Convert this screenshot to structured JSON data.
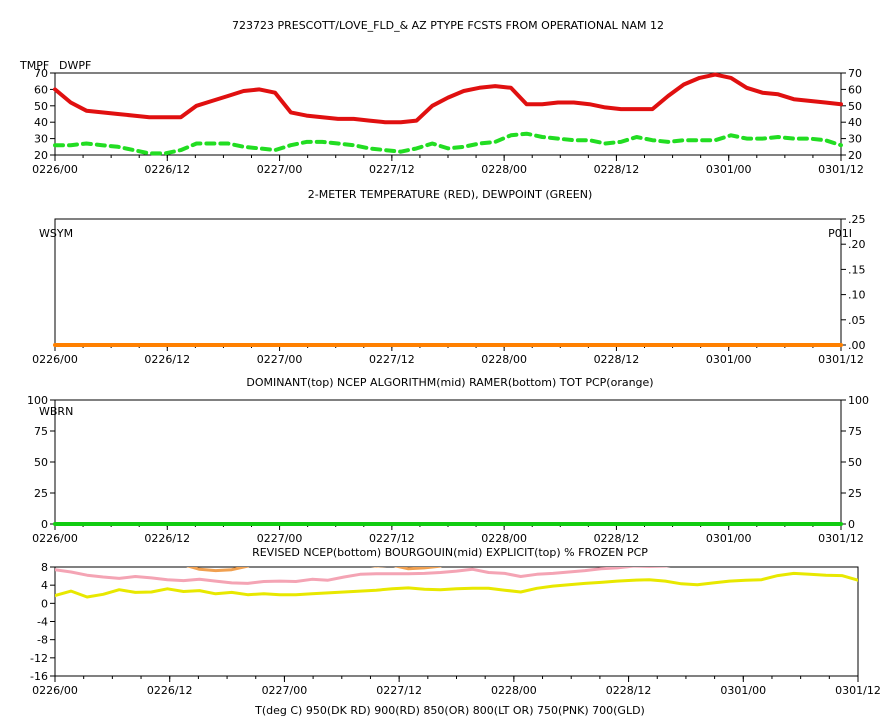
{
  "title": "723723  PRESCOTT/LOVE_FLD_& AZ  PTYPE FCSTS FROM OPERATIONAL NAM 12",
  "x_ticks": [
    "0226/00",
    "0226/12",
    "0227/00",
    "0227/12",
    "0228/00",
    "0228/12",
    "0301/00",
    "0301/12"
  ],
  "colors": {
    "temp": "#e01010",
    "dewp": "#22dd22",
    "wsym": "#e010e0",
    "p01i": "#ff8000",
    "green_line": "#11cc11",
    "pink": "#f4a4b4",
    "yellow": "#e8e800",
    "orange_lt": "#f0a050"
  },
  "chart_data": [
    {
      "type": "line",
      "legend": [
        "TMPF",
        "DWPF"
      ],
      "title": "2-METER TEMPERATURE (RED), DEWPOINT (GREEN)",
      "ylim": [
        20,
        70
      ],
      "y_ticks": [
        "70",
        "60",
        "50",
        "40",
        "30",
        "20"
      ],
      "series": [
        {
          "name": "TMPF",
          "values": [
            60,
            52,
            47,
            46,
            45,
            44,
            43,
            43,
            43,
            50,
            53,
            56,
            59,
            60,
            58,
            46,
            44,
            43,
            42,
            42,
            41,
            40,
            40,
            41,
            50,
            55,
            59,
            61,
            62,
            61,
            51,
            51,
            52,
            52,
            51,
            49,
            48,
            48,
            48,
            56,
            63,
            67,
            69,
            67,
            61,
            58,
            57,
            54,
            53,
            52,
            51
          ]
        },
        {
          "name": "DWPF",
          "values": [
            26,
            26,
            27,
            26,
            25,
            23,
            21,
            21,
            23,
            27,
            27,
            27,
            25,
            24,
            23,
            26,
            28,
            28,
            27,
            26,
            24,
            23,
            22,
            24,
            27,
            24,
            25,
            27,
            28,
            32,
            33,
            31,
            30,
            29,
            29,
            27,
            28,
            31,
            29,
            28,
            29,
            29,
            29,
            32,
            30,
            30,
            31,
            30,
            30,
            29,
            26
          ]
        }
      ]
    },
    {
      "type": "line",
      "legend": [
        "WSYM",
        "P01I"
      ],
      "title": "DOMINANT(top) NCEP ALGORITHM(mid) RAMER(bottom)    TOT PCP(orange)",
      "ylim": [
        0,
        0.25
      ],
      "y_ticks": [
        ".25",
        ".20",
        ".15",
        ".10",
        ".05",
        ".00"
      ],
      "series": [
        {
          "name": "P01I",
          "values": [
            0,
            0,
            0,
            0,
            0,
            0,
            0,
            0,
            0,
            0,
            0,
            0,
            0,
            0,
            0,
            0,
            0,
            0,
            0,
            0,
            0,
            0,
            0,
            0,
            0,
            0,
            0,
            0,
            0,
            0,
            0,
            0,
            0,
            0,
            0,
            0,
            0,
            0,
            0,
            0,
            0,
            0,
            0,
            0,
            0,
            0,
            0,
            0,
            0,
            0,
            0
          ]
        }
      ]
    },
    {
      "type": "line",
      "legend": [
        "WBRN"
      ],
      "title": "REVISED NCEP(bottom) BOURGOUIN(mid) EXPLICIT(top)    % FROZEN PCP",
      "ylim": [
        0,
        100
      ],
      "y_ticks": [
        "100",
        "75",
        "50",
        "25",
        "0"
      ],
      "series": [
        {
          "name": "WBRN",
          "values": [
            0,
            0,
            0,
            0,
            0,
            0,
            0,
            0,
            0,
            0,
            0,
            0,
            0,
            0,
            0,
            0,
            0,
            0,
            0,
            0,
            0,
            0,
            0,
            0,
            0,
            0,
            0,
            0,
            0,
            0,
            0,
            0,
            0,
            0,
            0,
            0,
            0,
            0,
            0,
            0,
            0,
            0,
            0,
            0,
            0,
            0,
            0,
            0,
            0,
            0,
            0
          ]
        }
      ]
    },
    {
      "type": "line",
      "title": "T(deg C)   950(DK RD) 900(RD) 850(OR) 800(LT OR) 750(PNK) 700(GLD)",
      "ylim": [
        -16,
        8
      ],
      "y_ticks": [
        "8",
        "4",
        "0",
        "-4",
        "-8",
        "-12",
        "-16"
      ],
      "series": [
        {
          "name": "800",
          "values": [
            9.5,
            9.8,
            10,
            10,
            10,
            10,
            10,
            10,
            8.5,
            7.5,
            7.2,
            7.4,
            8.2,
            9.5,
            10,
            10,
            10,
            10,
            10,
            8.6,
            8.2,
            8.4,
            7.6,
            7.8,
            8.2,
            10,
            10,
            10,
            10,
            10,
            10,
            10,
            10,
            10,
            10,
            10,
            10,
            10,
            10,
            10,
            10,
            10,
            10,
            10,
            10,
            10,
            10,
            10,
            10,
            10,
            10
          ]
        },
        {
          "name": "750",
          "values": [
            7.4,
            6.9,
            6.2,
            5.8,
            5.5,
            5.9,
            5.6,
            5.2,
            5,
            5.3,
            4.9,
            4.5,
            4.4,
            4.8,
            4.9,
            4.8,
            5.3,
            5.1,
            5.8,
            6.4,
            6.5,
            6.5,
            6.5,
            6.6,
            6.8,
            7.1,
            7.5,
            6.8,
            6.6,
            5.9,
            6.4,
            6.6,
            6.9,
            7.2,
            7.6,
            7.8,
            8.2,
            8.1,
            8.2,
            8.6,
            8.8,
            9.1,
            9.4,
            9.2,
            9.1,
            9,
            8.9,
            9.2,
            9.3,
            9.2,
            9.3
          ]
        },
        {
          "name": "700",
          "values": [
            1.7,
            2.7,
            1.4,
            2,
            3,
            2.4,
            2.5,
            3.2,
            2.6,
            2.8,
            2.1,
            2.4,
            1.9,
            2.1,
            1.9,
            1.9,
            2.1,
            2.3,
            2.5,
            2.7,
            2.9,
            3.2,
            3.4,
            3.1,
            3,
            3.2,
            3.3,
            3.3,
            2.9,
            2.5,
            3.3,
            3.8,
            4.1,
            4.4,
            4.6,
            4.9,
            5.1,
            5.2,
            4.9,
            4.3,
            4.1,
            4.5,
            4.9,
            5.1,
            5.2,
            6.1,
            6.6,
            6.4,
            6.2,
            6.1,
            5.1
          ]
        }
      ]
    }
  ]
}
